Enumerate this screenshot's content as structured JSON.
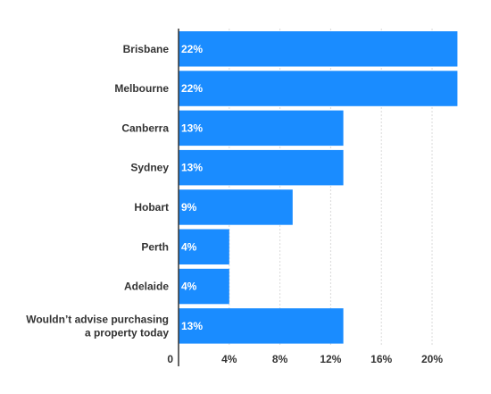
{
  "chart_data": {
    "type": "bar",
    "orientation": "horizontal",
    "categories": [
      [
        "Brisbane"
      ],
      [
        "Melbourne"
      ],
      [
        "Canberra"
      ],
      [
        "Sydney"
      ],
      [
        "Hobart"
      ],
      [
        "Perth"
      ],
      [
        "Adelaide"
      ],
      [
        "Wouldn’t advise purchasing",
        "a property today"
      ]
    ],
    "values": [
      22,
      22,
      13,
      13,
      9,
      4,
      4,
      13
    ],
    "value_labels": [
      "22%",
      "22%",
      "13%",
      "13%",
      "9%",
      "4%",
      "4%",
      "13%"
    ],
    "xticks": [
      0,
      4,
      8,
      12,
      16,
      20
    ],
    "xtick_labels": [
      "0",
      "4%",
      "8%",
      "12%",
      "16%",
      "20%"
    ],
    "xlim": [
      0,
      22
    ],
    "grid": "vertical-dashed",
    "bar_color": "#1a8cff",
    "grid_color": "#d9d9d9",
    "axis_color": "#333333"
  }
}
